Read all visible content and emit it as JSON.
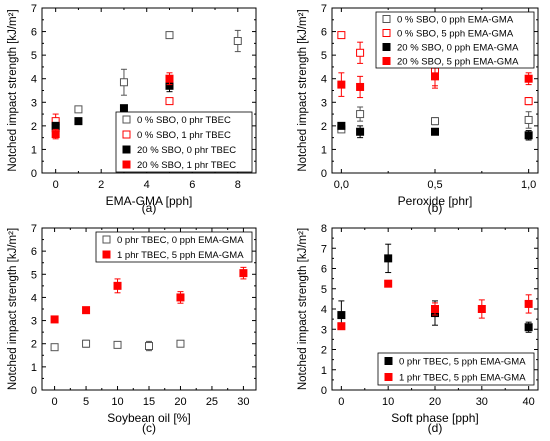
{
  "colors": {
    "black": "#000000",
    "red": "#ff0000",
    "gray": "#555555"
  },
  "chart_data": [
    {
      "panel": "(a)",
      "type": "scatter",
      "xlabel": "EMA-GMA [pph]",
      "ylabel": "Notched impact strength [kJ/m²]",
      "xlim": [
        -0.6,
        8.8
      ],
      "ylim": [
        0,
        7
      ],
      "xticks": [
        0,
        2,
        4,
        6,
        8
      ],
      "xtick_labels": [
        "0",
        "2",
        "4",
        "6",
        "8"
      ],
      "yticks": [
        0,
        1,
        2,
        3,
        4,
        5,
        6,
        7
      ],
      "ytick_labels": [
        "0",
        "1",
        "2",
        "3",
        "4",
        "5",
        "6",
        "7"
      ],
      "legend_position": "bottom-right",
      "series": [
        {
          "name": "0 % SBO, 0 phr TBEC",
          "marker": "square-open",
          "color": "#555555",
          "points": [
            {
              "x": 0,
              "y": 1.9,
              "err": 0.1
            },
            {
              "x": 1,
              "y": 2.7,
              "err": 0.1
            },
            {
              "x": 3,
              "y": 3.85,
              "err": 0.55
            },
            {
              "x": 5,
              "y": 5.85,
              "err": 0.1
            },
            {
              "x": 8,
              "y": 5.6,
              "err": 0.45
            }
          ]
        },
        {
          "name": "0 % SBO, 1 phr TBEC",
          "marker": "square-open",
          "color": "#ff0000",
          "points": [
            {
              "x": 0,
              "y": 2.2,
              "err": 0.3
            },
            {
              "x": 5,
              "y": 3.05,
              "err": 0.1
            }
          ]
        },
        {
          "name": "20 % SBO, 0 phr TBEC",
          "marker": "square-filled",
          "color": "#000000",
          "points": [
            {
              "x": 0,
              "y": 2.0,
              "err": 0.1
            },
            {
              "x": 1,
              "y": 2.2,
              "err": 0.1
            },
            {
              "x": 3,
              "y": 2.75,
              "err": 0.1
            },
            {
              "x": 5,
              "y": 3.7,
              "err": 0.25
            }
          ]
        },
        {
          "name": "20 % SBO, 1 phr TBEC",
          "marker": "square-filled",
          "color": "#ff0000",
          "points": [
            {
              "x": 0,
              "y": 1.65,
              "err": 0.2
            },
            {
              "x": 5,
              "y": 4.0,
              "err": 0.25
            }
          ]
        }
      ]
    },
    {
      "panel": "(b)",
      "type": "scatter",
      "xlabel": "Peroxide [phr]",
      "ylabel": "Notched impact strength [kJ/m²]",
      "xlim": [
        -0.05,
        1.05
      ],
      "ylim": [
        0,
        7
      ],
      "xticks": [
        0,
        0.5,
        1.0
      ],
      "xtick_labels": [
        "0,0",
        "0,5",
        "1,0"
      ],
      "yticks": [
        0,
        1,
        2,
        3,
        4,
        5,
        6,
        7
      ],
      "ytick_labels": [
        "0",
        "1",
        "2",
        "3",
        "4",
        "5",
        "6",
        "7"
      ],
      "legend_position": "top-right",
      "series": [
        {
          "name": "0 % SBO, 0 pph EMA-GMA",
          "marker": "square-open",
          "color": "#555555",
          "points": [
            {
              "x": 0,
              "y": 1.85,
              "err": 0.1
            },
            {
              "x": 0.1,
              "y": 2.5,
              "err": 0.3
            },
            {
              "x": 0.5,
              "y": 2.2,
              "err": 0.15
            },
            {
              "x": 1.0,
              "y": 2.25,
              "err": 0.35
            }
          ]
        },
        {
          "name": "0 % SBO, 5 pph EMA-GMA",
          "marker": "square-open",
          "color": "#ff0000",
          "points": [
            {
              "x": 0,
              "y": 5.85,
              "err": 0.1
            },
            {
              "x": 0.1,
              "y": 5.1,
              "err": 0.45
            },
            {
              "x": 0.5,
              "y": 4.3,
              "err": 0.6
            },
            {
              "x": 1.0,
              "y": 3.05,
              "err": 0.15
            }
          ]
        },
        {
          "name": "20 % SBO, 0 pph EMA-GMA",
          "marker": "square-filled",
          "color": "#000000",
          "points": [
            {
              "x": 0,
              "y": 2.0,
              "err": 0.1
            },
            {
              "x": 0.1,
              "y": 1.75,
              "err": 0.25
            },
            {
              "x": 0.5,
              "y": 1.75,
              "err": 0.1
            },
            {
              "x": 1.0,
              "y": 1.6,
              "err": 0.2
            }
          ]
        },
        {
          "name": "20 % SBO, 5 pph EMA-GMA",
          "marker": "square-filled",
          "color": "#ff0000",
          "points": [
            {
              "x": 0,
              "y": 3.75,
              "err": 0.5
            },
            {
              "x": 0.1,
              "y": 3.65,
              "err": 0.45
            },
            {
              "x": 0.5,
              "y": 4.1,
              "err": 0.5
            },
            {
              "x": 1.0,
              "y": 4.0,
              "err": 0.25
            }
          ]
        }
      ]
    },
    {
      "panel": "(c)",
      "type": "scatter",
      "xlabel": "Soybean oil [%]",
      "ylabel": "Notched impact strength [kJ/m²]",
      "xlim": [
        -2,
        32
      ],
      "ylim": [
        0,
        7
      ],
      "xticks": [
        0,
        5,
        10,
        15,
        20,
        25,
        30
      ],
      "xtick_labels": [
        "0",
        "5",
        "10",
        "15",
        "20",
        "25",
        "30"
      ],
      "yticks": [
        0,
        1,
        2,
        3,
        4,
        5,
        6,
        7
      ],
      "ytick_labels": [
        "0",
        "1",
        "2",
        "3",
        "4",
        "5",
        "6",
        "7"
      ],
      "legend_position": "top-right",
      "series": [
        {
          "name": "0 phr TBEC, 0 pph EMA-GMA",
          "marker": "square-open",
          "color": "#555555",
          "points": [
            {
              "x": 0,
              "y": 1.85,
              "err": 0.1
            },
            {
              "x": 5,
              "y": 2.0,
              "err": 0.15
            },
            {
              "x": 10,
              "y": 1.95,
              "err": 0.1
            },
            {
              "x": 15,
              "y": 1.9,
              "err": 0.2
            },
            {
              "x": 20,
              "y": 2.0,
              "err": 0.1
            }
          ]
        },
        {
          "name": "1 phr TBEC, 5 pph EMA-GMA",
          "marker": "square-filled",
          "color": "#ff0000",
          "points": [
            {
              "x": 0,
              "y": 3.05,
              "err": 0.1
            },
            {
              "x": 5,
              "y": 3.45,
              "err": 0.1
            },
            {
              "x": 10,
              "y": 4.5,
              "err": 0.3
            },
            {
              "x": 20,
              "y": 4.0,
              "err": 0.25
            },
            {
              "x": 30,
              "y": 5.05,
              "err": 0.25
            }
          ]
        }
      ]
    },
    {
      "panel": "(d)",
      "type": "scatter",
      "xlabel": "Soft phase [pph]",
      "ylabel": "Notched impact strength [kJ/m²]",
      "xlim": [
        -2,
        42
      ],
      "ylim": [
        0,
        8
      ],
      "xticks": [
        0,
        10,
        20,
        30,
        40
      ],
      "xtick_labels": [
        "0",
        "10",
        "20",
        "30",
        "40"
      ],
      "yticks": [
        0,
        1,
        2,
        3,
        4,
        5,
        6,
        7,
        8
      ],
      "ytick_labels": [
        "0",
        "1",
        "2",
        "3",
        "4",
        "5",
        "6",
        "7",
        "8"
      ],
      "legend_position": "bottom-right",
      "series": [
        {
          "name": "0 phr TBEC, 5 pph EMA-GMA",
          "marker": "square-filled",
          "color": "#000000",
          "points": [
            {
              "x": 0,
              "y": 3.7,
              "err": 0.7
            },
            {
              "x": 10,
              "y": 6.5,
              "err": 0.7
            },
            {
              "x": 20,
              "y": 3.8,
              "err": 0.6
            },
            {
              "x": 40,
              "y": 3.1,
              "err": 0.25
            }
          ]
        },
        {
          "name": "1 phr TBEC, 5 pph EMA-GMA",
          "marker": "square-filled",
          "color": "#ff0000",
          "points": [
            {
              "x": 0,
              "y": 3.15,
              "err": 0.1
            },
            {
              "x": 10,
              "y": 5.25,
              "err": 0.1
            },
            {
              "x": 20,
              "y": 4.0,
              "err": 0.3
            },
            {
              "x": 30,
              "y": 4.0,
              "err": 0.45
            },
            {
              "x": 40,
              "y": 4.25,
              "err": 0.45
            }
          ]
        }
      ]
    }
  ]
}
